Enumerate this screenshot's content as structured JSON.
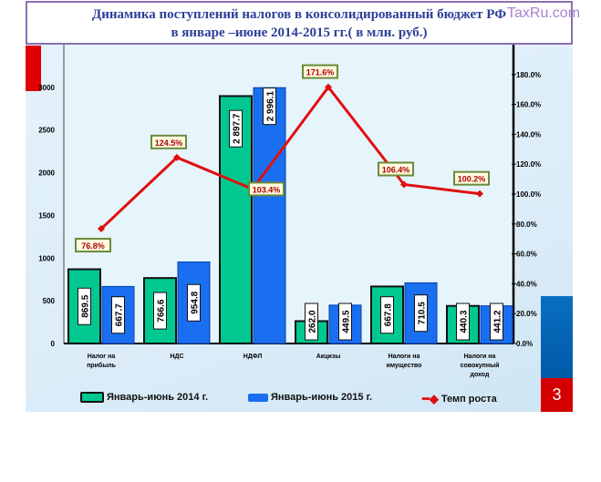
{
  "title_line1": "Динамика поступлений налогов в консолидированный бюджет РФ",
  "title_line2": "в январе –июне 2014-2015 гг.( в млн. руб.)",
  "watermark": "TaxRu.com",
  "slide_number": "3",
  "colors": {
    "s2014": "#00c890",
    "s2015": "#1a6ff0",
    "rate": "#e01010"
  },
  "chart_data": {
    "type": "bar",
    "title": "Динамика поступлений налогов в консолидированный бюджет РФ в январе –июне 2014-2015 гг.( в млн. руб.)",
    "categories": [
      "Налог на прибыль",
      "НДС",
      "НДФЛ",
      "Акцизы",
      "Налоги на имущество",
      "Налоги на совокупный доход"
    ],
    "category_lines": [
      [
        "Налог на",
        "прибыль"
      ],
      [
        "НДС"
      ],
      [
        "НДФЛ"
      ],
      [
        "Акцизы"
      ],
      [
        "Налоги на",
        "имущество"
      ],
      [
        "Налоги на",
        "совокупный",
        "доход"
      ]
    ],
    "series": [
      {
        "name": "Январь-июнь 2014 г.",
        "values": [
          869.5,
          766.6,
          2897.7,
          262.0,
          667.8,
          440.3
        ],
        "labels": [
          "869.5",
          "766.6",
          "2 897.7",
          "262.0",
          "667.8",
          "440.3"
        ]
      },
      {
        "name": "Январь-июнь 2015 г.",
        "values": [
          667.7,
          954.8,
          2996.1,
          449.5,
          710.5,
          441.2
        ],
        "labels": [
          "667.7",
          "954.8",
          "2 996.1",
          "449.5",
          "710.5",
          "441.2"
        ]
      },
      {
        "name": "Темп роста",
        "type": "line",
        "axis": "right",
        "values": [
          76.8,
          124.5,
          103.4,
          171.6,
          106.4,
          100.2
        ],
        "labels": [
          "76.8%",
          "124.5%",
          "103.4%",
          "171.6%",
          "106.4%",
          "100.2%"
        ]
      }
    ],
    "ylim": [
      0,
      3500
    ],
    "yticks": [
      0,
      500,
      1000,
      1500,
      2000,
      2500,
      3000
    ],
    "y2lim": [
      0,
      200
    ],
    "y2ticks": [
      "0.0%",
      "20.0%",
      "40.0%",
      "60.0%",
      "80.0%",
      "100.0%",
      "120.0%",
      "140.0%",
      "160.0%",
      "180.0%"
    ],
    "legend": "bottom"
  }
}
